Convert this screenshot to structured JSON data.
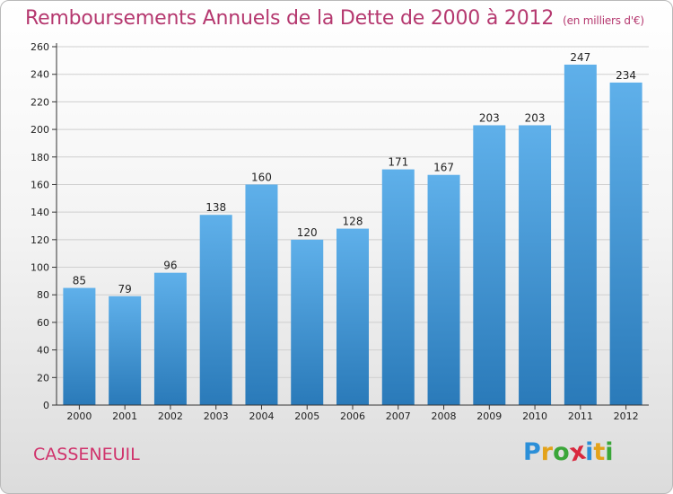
{
  "chart_data": {
    "type": "bar",
    "title": "Remboursements Annuels de la Dette de 2000 à 2012",
    "unit_note": "(en milliers d'€)",
    "categories": [
      "2000",
      "2001",
      "2002",
      "2003",
      "2004",
      "2005",
      "2006",
      "2007",
      "2008",
      "2009",
      "2010",
      "2011",
      "2012"
    ],
    "values": [
      85,
      79,
      96,
      138,
      160,
      120,
      128,
      171,
      167,
      203,
      203,
      247,
      234
    ],
    "ylim": [
      0,
      260
    ],
    "yticks": [
      0,
      20,
      40,
      60,
      80,
      100,
      120,
      140,
      160,
      180,
      200,
      220,
      240,
      260
    ],
    "grid": true,
    "xlabel": "",
    "ylabel": ""
  },
  "commune": "CASSENEUIL",
  "brand": {
    "letters": [
      "P",
      "r",
      "o",
      "x",
      "i",
      "t",
      "i"
    ],
    "colors": [
      "#2b8fd8",
      "#e3a21a",
      "#3aa639",
      "#d9283e",
      "#2b8fd8",
      "#e3a21a",
      "#3aa639"
    ]
  },
  "colors": {
    "bar_top": "#5fb0ea",
    "bar_bottom": "#2a7ab9",
    "title": "#b5386f",
    "grid": "#cfcfcf"
  }
}
